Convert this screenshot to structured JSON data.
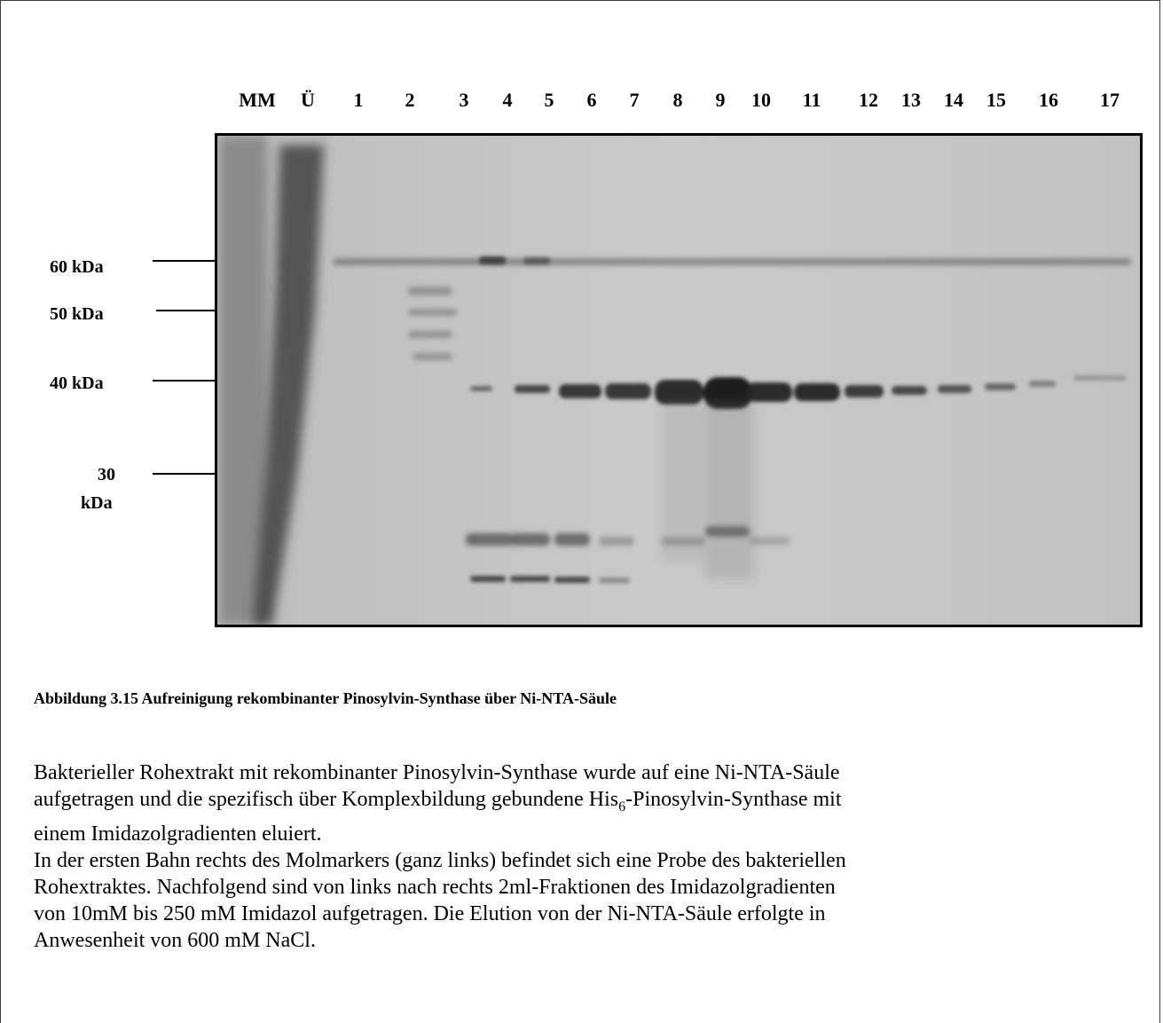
{
  "figure": {
    "lanes": [
      "MM",
      "Ü",
      "1",
      "2",
      "3",
      "4",
      "5",
      "6",
      "7",
      "8",
      "9",
      "10",
      "11",
      "12",
      "13",
      "14",
      "15",
      "16",
      "17"
    ],
    "markers": [
      {
        "label": "60 kDa"
      },
      {
        "label": "50 kDa"
      },
      {
        "label": "40 kDa"
      },
      {
        "label": "30",
        "label2": "kDa"
      }
    ]
  },
  "caption": {
    "title": "Abbildung 3.15 Aufreinigung rekombinanter Pinosylvin-Synthase über Ni-NTA-Säule"
  },
  "body": {
    "p1_line1": "Bakterieller Rohextrakt mit rekombinanter Pinosylvin-Synthase wurde auf eine Ni-NTA-Säule",
    "p1_line2_a": "aufgetragen und die spezifisch über Komplexbildung gebundene His",
    "p1_line2_sub": "6",
    "p1_line2_b": "-Pinosylvin-Synthase mit",
    "p1_line3": "einem Imidazolgradienten eluiert.",
    "p2_line1": "In der ersten Bahn rechts des Molmarkers (ganz links) befindet sich eine Probe des bakteriellen",
    "p2_line2": "Rohextraktes. Nachfolgend sind von links nach rechts 2ml-Fraktionen des Imidazolgradienten",
    "p2_line3": "von 10mM bis 250 mM Imidazol aufgetragen. Die Elution von der Ni-NTA-Säule erfolgte in",
    "p2_line4": "Anwesenheit von 600 mM NaCl."
  }
}
